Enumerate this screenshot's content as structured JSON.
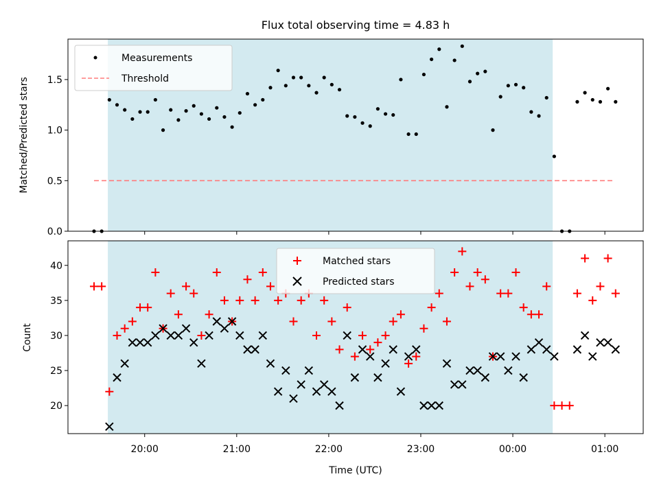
{
  "figure": {
    "title": "Flux total observing time = 4.83 h"
  },
  "chart_data": [
    {
      "type": "scatter",
      "ylabel": "Matched/Predicted stars",
      "ylim": [
        0,
        1.9
      ],
      "yticks": [
        0.0,
        0.5,
        1.0,
        1.5
      ],
      "ytick_labels": [
        "0.0",
        "0.5",
        "1.0",
        "1.5"
      ],
      "observing_window": {
        "start": "19:36",
        "end": "00:26"
      },
      "shade_color": "#d3eaf0",
      "threshold": {
        "name": "Threshold",
        "value": 0.5,
        "x_range": [
          "19:27",
          "01:05"
        ],
        "color": "#ff7b7b"
      },
      "series": [
        {
          "name": "Measurements",
          "color": "#000000",
          "marker": "dot",
          "x": [
            "19:27",
            "19:32",
            "19:37",
            "19:42",
            "19:47",
            "19:52",
            "19:57",
            "20:02",
            "20:07",
            "20:12",
            "20:17",
            "20:22",
            "20:27",
            "20:32",
            "20:37",
            "20:42",
            "20:47",
            "20:52",
            "20:57",
            "21:02",
            "21:07",
            "21:12",
            "21:17",
            "21:22",
            "21:27",
            "21:32",
            "21:37",
            "21:42",
            "21:47",
            "21:52",
            "21:57",
            "22:02",
            "22:07",
            "22:12",
            "22:17",
            "22:22",
            "22:27",
            "22:32",
            "22:37",
            "22:42",
            "22:47",
            "22:52",
            "22:57",
            "23:02",
            "23:07",
            "23:12",
            "23:17",
            "23:22",
            "23:27",
            "23:32",
            "23:37",
            "23:42",
            "23:47",
            "23:52",
            "23:57",
            "00:02",
            "00:07",
            "00:12",
            "00:17",
            "00:22",
            "00:27",
            "00:32",
            "00:37",
            "00:42",
            "00:47",
            "00:52",
            "00:57",
            "01:02",
            "01:07"
          ],
          "y": [
            0.0,
            0.0,
            1.3,
            1.25,
            1.2,
            1.11,
            1.18,
            1.18,
            1.3,
            1.0,
            1.2,
            1.1,
            1.19,
            1.24,
            1.16,
            1.11,
            1.22,
            1.13,
            1.03,
            1.17,
            1.36,
            1.25,
            1.3,
            1.42,
            1.59,
            1.44,
            1.52,
            1.52,
            1.44,
            1.37,
            1.52,
            1.45,
            1.4,
            1.14,
            1.13,
            1.07,
            1.04,
            1.21,
            1.16,
            1.15,
            1.5,
            0.96,
            0.96,
            1.55,
            1.7,
            1.8,
            1.23,
            1.69,
            1.83,
            1.48,
            1.56,
            1.58,
            1.0,
            1.33,
            1.44,
            1.45,
            1.42,
            1.18,
            1.14,
            1.32,
            0.74,
            0.0,
            0.0,
            1.28,
            1.37,
            1.3,
            1.28,
            1.41,
            1.28
          ]
        }
      ],
      "legend": {
        "placement": "upper-left"
      }
    },
    {
      "type": "scatter",
      "xlabel": "Time (UTC)",
      "ylabel": "Count",
      "ylim": [
        16,
        43.5
      ],
      "yticks": [
        20,
        25,
        30,
        35,
        40
      ],
      "ytick_labels": [
        "20",
        "25",
        "30",
        "35",
        "40"
      ],
      "xticks": [
        "20:00",
        "21:00",
        "22:00",
        "23:00",
        "00:00",
        "01:00"
      ],
      "xlim": [
        "19:10",
        "01:25"
      ],
      "observing_window": {
        "start": "19:36",
        "end": "00:26"
      },
      "shade_color": "#d3eaf0",
      "series": [
        {
          "name": "Matched stars",
          "color": "#ff0000",
          "marker": "plus",
          "x": [
            "19:27",
            "19:32",
            "19:37",
            "19:42",
            "19:47",
            "19:52",
            "19:57",
            "20:02",
            "20:07",
            "20:12",
            "20:17",
            "20:22",
            "20:27",
            "20:32",
            "20:37",
            "20:42",
            "20:47",
            "20:52",
            "20:57",
            "21:02",
            "21:07",
            "21:12",
            "21:17",
            "21:22",
            "21:27",
            "21:32",
            "21:37",
            "21:42",
            "21:47",
            "21:52",
            "21:57",
            "22:02",
            "22:07",
            "22:12",
            "22:17",
            "22:22",
            "22:27",
            "22:32",
            "22:37",
            "22:42",
            "22:47",
            "22:52",
            "22:57",
            "23:02",
            "23:07",
            "23:12",
            "23:17",
            "23:22",
            "23:27",
            "23:32",
            "23:37",
            "23:42",
            "23:47",
            "23:52",
            "23:57",
            "00:02",
            "00:07",
            "00:12",
            "00:17",
            "00:22",
            "00:27",
            "00:32",
            "00:37",
            "00:42",
            "00:47",
            "00:52",
            "00:57",
            "01:02",
            "01:07"
          ],
          "y": [
            37,
            37,
            22,
            30,
            31,
            32,
            34,
            34,
            39,
            31,
            36,
            33,
            37,
            36,
            30,
            33,
            39,
            35,
            32,
            35,
            38,
            35,
            39,
            37,
            35,
            36,
            32,
            35,
            36,
            30,
            35,
            32,
            28,
            34,
            27,
            30,
            28,
            29,
            30,
            32,
            33,
            26,
            27,
            31,
            34,
            36,
            32,
            39,
            42,
            37,
            39,
            38,
            27,
            36,
            36,
            39,
            34,
            33,
            33,
            37,
            20,
            20,
            20,
            36,
            41,
            35,
            37,
            41,
            36
          ]
        },
        {
          "name": "Predicted stars",
          "color": "#000000",
          "marker": "x",
          "x": [
            "19:37",
            "19:42",
            "19:47",
            "19:52",
            "19:57",
            "20:02",
            "20:07",
            "20:12",
            "20:17",
            "20:22",
            "20:27",
            "20:32",
            "20:37",
            "20:42",
            "20:47",
            "20:52",
            "20:57",
            "21:02",
            "21:07",
            "21:12",
            "21:17",
            "21:22",
            "21:27",
            "21:32",
            "21:37",
            "21:42",
            "21:47",
            "21:52",
            "21:57",
            "22:02",
            "22:07",
            "22:12",
            "22:17",
            "22:22",
            "22:27",
            "22:32",
            "22:37",
            "22:42",
            "22:47",
            "22:52",
            "22:57",
            "23:02",
            "23:07",
            "23:12",
            "23:17",
            "23:22",
            "23:27",
            "23:32",
            "23:37",
            "23:42",
            "23:47",
            "23:52",
            "23:57",
            "00:02",
            "00:07",
            "00:12",
            "00:17",
            "00:22",
            "00:27",
            "00:42",
            "00:47",
            "00:52",
            "00:57",
            "01:02",
            "01:07"
          ],
          "y": [
            17,
            24,
            26,
            29,
            29,
            29,
            30,
            31,
            30,
            30,
            31,
            29,
            26,
            30,
            32,
            31,
            32,
            30,
            28,
            28,
            30,
            26,
            22,
            25,
            21,
            23,
            25,
            22,
            23,
            22,
            20,
            30,
            24,
            28,
            27,
            24,
            26,
            28,
            22,
            27,
            28,
            20,
            20,
            20,
            26,
            23,
            23,
            25,
            25,
            24,
            27,
            27,
            25,
            27,
            24,
            28,
            29,
            28,
            27,
            28,
            30,
            27,
            29,
            29,
            28
          ]
        }
      ],
      "legend": {
        "placement": "upper-center"
      }
    }
  ]
}
